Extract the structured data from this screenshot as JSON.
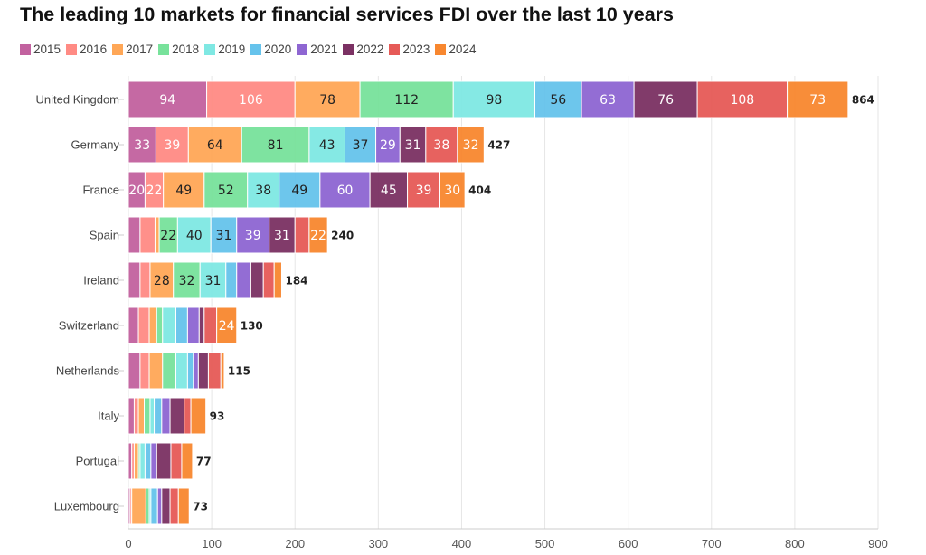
{
  "chart_data": {
    "type": "bar",
    "orientation": "horizontal",
    "stacked": true,
    "title": "The leading 10 markets for financial services FDI over the last 10 years",
    "categories": [
      "United Kingdom",
      "Germany",
      "France",
      "Spain",
      "Ireland",
      "Switzerland",
      "Netherlands",
      "Italy",
      "Portugal",
      "Luxembourg"
    ],
    "totals": [
      864,
      427,
      404,
      240,
      184,
      130,
      115,
      93,
      77,
      73
    ],
    "xlim": [
      0,
      900
    ],
    "xticks": [
      0,
      100,
      200,
      300,
      400,
      500,
      600,
      700,
      800,
      900
    ],
    "grid": true,
    "legend_position": "top-left",
    "series": [
      {
        "name": "2015",
        "color": "#c2629f",
        "text": "#fff",
        "values": [
          94,
          33,
          20,
          14,
          14,
          12,
          14,
          7,
          4,
          2
        ]
      },
      {
        "name": "2016",
        "color": "#ff8b84",
        "text": "#fff",
        "values": [
          106,
          39,
          22,
          18,
          12,
          13,
          11,
          5,
          3,
          2
        ]
      },
      {
        "name": "2017",
        "color": "#ffa757",
        "text": "#222",
        "values": [
          78,
          64,
          49,
          5,
          28,
          9,
          16,
          7,
          5,
          17
        ]
      },
      {
        "name": "2018",
        "color": "#78e29b",
        "text": "#222",
        "values": [
          112,
          81,
          52,
          22,
          32,
          7,
          16,
          7,
          2,
          4
        ]
      },
      {
        "name": "2019",
        "color": "#7fe8e3",
        "text": "#222",
        "values": [
          98,
          43,
          38,
          40,
          31,
          16,
          14,
          5,
          6,
          2
        ]
      },
      {
        "name": "2020",
        "color": "#66c3ec",
        "text": "#222",
        "values": [
          56,
          37,
          49,
          31,
          13,
          14,
          7,
          9,
          7,
          8
        ]
      },
      {
        "name": "2021",
        "color": "#8e66d2",
        "text": "#fff",
        "values": [
          63,
          29,
          60,
          39,
          17,
          14,
          6,
          10,
          7,
          5
        ]
      },
      {
        "name": "2022",
        "color": "#7b3163",
        "text": "#fff",
        "values": [
          76,
          31,
          45,
          31,
          15,
          6,
          12,
          17,
          17,
          10
        ]
      },
      {
        "name": "2023",
        "color": "#e65a57",
        "text": "#fff",
        "values": [
          108,
          38,
          39,
          17,
          13,
          15,
          15,
          8,
          13,
          10
        ]
      },
      {
        "name": "2024",
        "color": "#f8872f",
        "text": "#fff",
        "values": [
          73,
          32,
          30,
          22,
          9,
          24,
          4,
          18,
          13,
          13
        ]
      }
    ],
    "shown_labels_min": 20
  }
}
